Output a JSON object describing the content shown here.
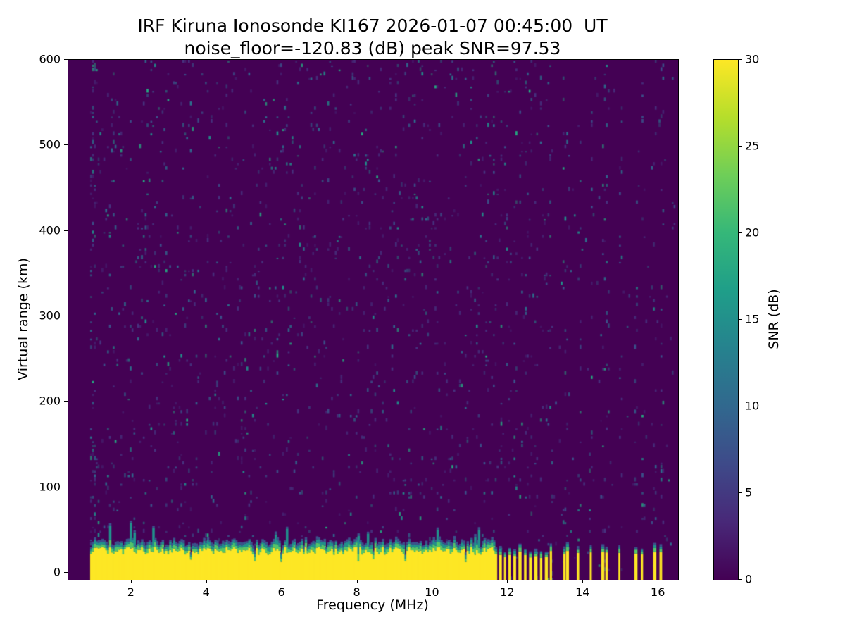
{
  "chart_data": {
    "type": "heatmap",
    "title": "IRF Kiruna Ionosonde KI167 2026-01-07 00:45:00  UT",
    "subtitle": "noise_floor=-120.83 (dB) peak SNR=97.53",
    "station": "IRF Kiruna Ionosonde KI167",
    "timestamp_ut": "2026-01-07 00:45:00",
    "noise_floor_db": -120.83,
    "peak_snr_db": 97.53,
    "xlabel": "Frequency (MHz)",
    "ylabel": "Virtual range (km)",
    "xlim": [
      0.32,
      16.52
    ],
    "ylim": [
      -8.3,
      600
    ],
    "xticks": [
      2,
      4,
      6,
      8,
      10,
      12,
      14,
      16
    ],
    "yticks": [
      0,
      100,
      200,
      300,
      400,
      500,
      600
    ],
    "grid": false,
    "legend": "none",
    "colorbar": {
      "label": "SNR (dB)",
      "min": 0,
      "max": 30,
      "ticks": [
        0,
        5,
        10,
        15,
        20,
        25,
        30
      ],
      "colors": [
        "#440154",
        "#482878",
        "#3e4a89",
        "#31688e",
        "#26828e",
        "#1f9e89",
        "#35b779",
        "#6ece58",
        "#b5de2b",
        "#fde725"
      ]
    },
    "colors": {
      "background": "#440154",
      "echo_yellow": "#fde725",
      "edge_green": "#54c568",
      "edge_teal": "#21918c",
      "edge_blue": "#3b528b"
    },
    "ground_echo": {
      "f_start": 0.9,
      "f_end": 11.62,
      "top_km_base": 21,
      "top_km_jitter": 9,
      "green_km_base": 2.5,
      "green_km_jitter": 3.5,
      "teal_km_base": 2,
      "teal_km_jitter": 3,
      "blue_km_base": 1.5,
      "blue_km_jitter": 2.5,
      "spike_prob": 0.06,
      "spike_extra_km": 14,
      "notch_prob": 0.03,
      "notch_top_km": 12
    },
    "stripes": [
      11.68,
      11.8,
      11.92,
      12.04,
      12.18,
      12.32,
      12.46,
      12.6,
      12.74,
      12.88,
      13.02,
      13.14,
      13.5,
      13.58,
      13.86,
      14.2,
      14.52,
      14.62,
      14.96,
      15.4,
      15.56,
      15.9,
      16.06
    ],
    "stripe_top_km_base": 16,
    "stripe_top_km_jitter": 10,
    "noise": {
      "seed": 42,
      "f_start": 0.9,
      "f_end": 16.45,
      "cell_mhz": 0.05,
      "cell_km": 5,
      "p_low": 0.05,
      "p_high": 0.012,
      "p_stripe": 0.07,
      "p_left": 0.28,
      "left_column_f_end": 1.02,
      "stripe_near_mhz": 0.05,
      "palette": [
        "#46327e",
        "#3b528b",
        "#31688e",
        "#2c728e",
        "#21918c",
        "#25ac82"
      ]
    }
  }
}
